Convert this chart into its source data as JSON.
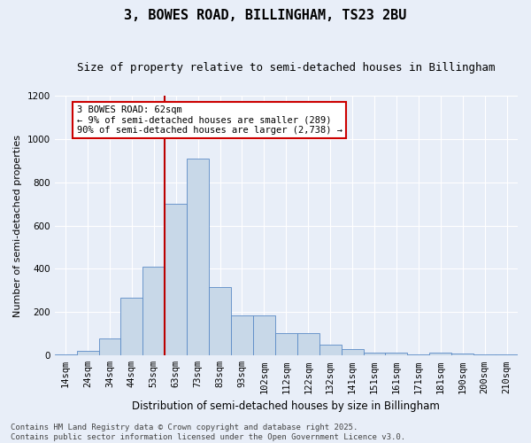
{
  "title": "3, BOWES ROAD, BILLINGHAM, TS23 2BU",
  "subtitle": "Size of property relative to semi-detached houses in Billingham",
  "xlabel": "Distribution of semi-detached houses by size in Billingham",
  "ylabel": "Number of semi-detached properties",
  "categories": [
    "14sqm",
    "24sqm",
    "34sqm",
    "44sqm",
    "53sqm",
    "63sqm",
    "73sqm",
    "83sqm",
    "93sqm",
    "102sqm",
    "112sqm",
    "122sqm",
    "132sqm",
    "141sqm",
    "151sqm",
    "161sqm",
    "171sqm",
    "181sqm",
    "190sqm",
    "200sqm",
    "210sqm"
  ],
  "values": [
    5,
    20,
    80,
    265,
    410,
    700,
    910,
    315,
    185,
    185,
    105,
    105,
    52,
    28,
    15,
    13,
    5,
    12,
    8,
    5,
    5
  ],
  "bar_color": "#c8d8e8",
  "bar_edge_color": "#5a8ac6",
  "vline_x_index": 5,
  "vline_color": "#bb0000",
  "annotation_text": "3 BOWES ROAD: 62sqm\n← 9% of semi-detached houses are smaller (289)\n90% of semi-detached houses are larger (2,738) →",
  "annotation_box_color": "#ffffff",
  "annotation_box_edge_color": "#cc0000",
  "ylim": [
    0,
    1200
  ],
  "yticks": [
    0,
    200,
    400,
    600,
    800,
    1000,
    1200
  ],
  "background_color": "#e8eef8",
  "footer_text": "Contains HM Land Registry data © Crown copyright and database right 2025.\nContains public sector information licensed under the Open Government Licence v3.0.",
  "title_fontsize": 11,
  "subtitle_fontsize": 9,
  "xlabel_fontsize": 8.5,
  "ylabel_fontsize": 8,
  "tick_fontsize": 7.5,
  "annotation_fontsize": 7.5,
  "footer_fontsize": 6.5
}
